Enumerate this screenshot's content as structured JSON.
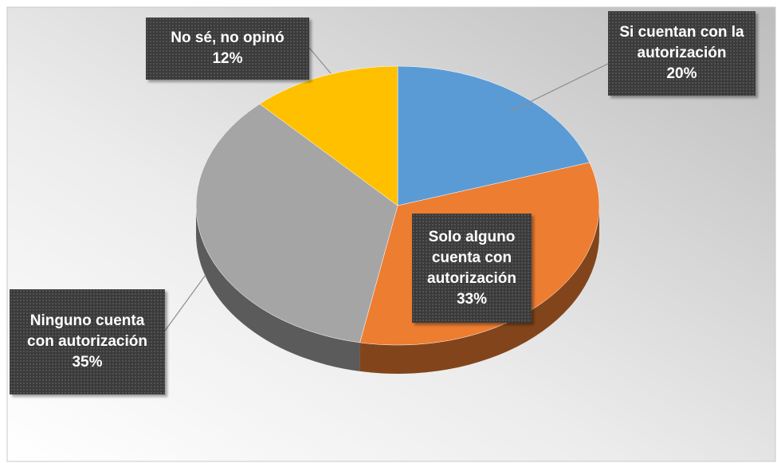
{
  "chart_data": {
    "type": "pie",
    "categories": [
      "Si cuentan con la autorización",
      "Solo alguno cuenta con autorización",
      "Ninguno cuenta con autorización",
      "No sé, no opinó"
    ],
    "values": [
      20,
      33,
      35,
      12
    ],
    "value_labels": [
      "20%",
      "33%",
      "35%",
      "12%"
    ],
    "colors": [
      "#5b9bd5",
      "#ed7d31",
      "#a5a5a5",
      "#ffc000"
    ]
  }
}
